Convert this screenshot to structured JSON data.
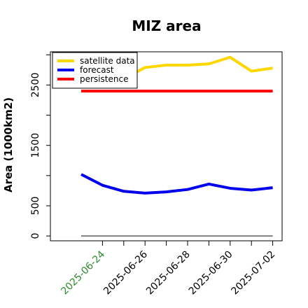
{
  "chart_data": {
    "type": "line",
    "title": "MIZ area",
    "xlabel": "",
    "ylabel": "Area (1000km2)",
    "x": [
      "2025-06-23",
      "2025-06-24",
      "2025-06-25",
      "2025-06-26",
      "2025-06-27",
      "2025-06-28",
      "2025-06-29",
      "2025-06-30",
      "2025-07-01",
      "2025-07-02"
    ],
    "x_tick_labels": [
      "2025-06-24",
      "2025-06-26",
      "2025-06-28",
      "2025-06-30",
      "2025-07-02"
    ],
    "highlighted_tick": "2025-06-24",
    "highlight_color": "#2e8b2e",
    "y_ticks": [
      0,
      500,
      1500,
      2500
    ],
    "ylim": [
      -80,
      3050
    ],
    "grid": false,
    "legend_position": "top-left",
    "series": [
      {
        "name": "satellite data",
        "color": "#ffd700",
        "values": [
          null,
          2500,
          2600,
          2790,
          2830,
          2830,
          2850,
          2960,
          2730,
          2780
        ]
      },
      {
        "name": "forecast",
        "color": "#0000ee",
        "values": [
          1020,
          840,
          740,
          710,
          730,
          770,
          860,
          790,
          760,
          800
        ]
      },
      {
        "name": "persistence",
        "color": "#ff0000",
        "values": [
          2400,
          2400,
          2400,
          2400,
          2400,
          2400,
          2400,
          2400,
          2400,
          2400
        ]
      }
    ],
    "baseline": {
      "value": 0,
      "color": "#7f7f7f"
    }
  }
}
